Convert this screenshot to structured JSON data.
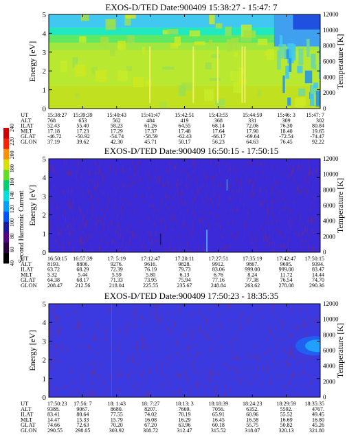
{
  "chart_data": [
    {
      "type": "heatmap",
      "title": "EXOS-D/TED  Date:900409  15:38:27 - 15:47: 7",
      "ylabel": "Energy [eV]",
      "y2label": "Temperature [K]",
      "ylim": [
        0,
        5
      ],
      "y2lim": [
        0,
        12000
      ],
      "y_ticks": [
        "0",
        "1",
        "2",
        "3",
        "4",
        "5"
      ],
      "y2_ticks": [
        "0",
        "2000",
        "4000",
        "6000",
        "8000",
        "10000",
        "12000"
      ],
      "grid": false,
      "x_times": [
        "15:38:27",
        "15:39:39",
        "15:40:43",
        "15:41:47",
        "15:42:51",
        "15:43:55",
        "15:44:59",
        "15:46: 3",
        "15:47: 7"
      ],
      "rows": [
        {
          "label": "UT",
          "values": [
            "15:38:27",
            "15:39:39",
            "15:40:43",
            "15:41:47",
            "15:42:51",
            "15:43:55",
            "15:44:59",
            "15:46: 3",
            "15:47: 7"
          ]
        },
        {
          "label": "ALT",
          "values": [
            "768",
            "653",
            "562",
            "484",
            "419",
            "368",
            "331",
            "309",
            "302"
          ]
        },
        {
          "label": "ILAT",
          "values": [
            "52.43",
            "55.40",
            "58.23",
            "61.26",
            "64.55",
            "68.14",
            "72.06",
            "76.30",
            "80.84"
          ]
        },
        {
          "label": "MLT",
          "values": [
            "17.18",
            "17.23",
            "17.29",
            "17.37",
            "17.48",
            "17.64",
            "17.90",
            "18.40",
            "19.65"
          ]
        },
        {
          "label": "GLAT",
          "values": [
            "-46.72",
            "-50.92",
            "-54.74",
            "-58.59",
            "-62.43",
            "-66.17",
            "-69.64",
            "-72.54",
            "-74.47"
          ]
        },
        {
          "label": "GLON",
          "values": [
            "37.19",
            "39.62",
            "42.30",
            "45.71",
            "50.17",
            "56.23",
            "64.63",
            "76.45",
            "92.22"
          ]
        }
      ],
      "description_levels": "band 0-3.4 eV yellow-green, 3.4-4.4 eV cyan/green, 4.4-5 eV light blue; blue patches near end"
    },
    {
      "type": "heatmap",
      "title": "EXOS-D/TED  Date:900409  16:50:15 - 17:50:15",
      "ylabel": "Energy [eV]",
      "y2label": "Temperature [K]",
      "ylim": [
        0,
        5
      ],
      "y2lim": [
        0,
        12000
      ],
      "y_ticks": [
        "0",
        "1",
        "2",
        "3",
        "4",
        "5"
      ],
      "y2_ticks": [
        "0",
        "2000",
        "4000",
        "6000",
        "8000",
        "10000",
        "12000"
      ],
      "grid": false,
      "x_times": [
        "16:50:15",
        "16:57:39",
        "17: 5:19",
        "17:12:47",
        "17:20:11",
        "17:27:51",
        "17:35:19",
        "17:42:47",
        "17:50:15"
      ],
      "rows": [
        {
          "label": "UT",
          "values": [
            "16:50:15",
            "16:57:39",
            "17: 5:19",
            "17:12:47",
            "17:20:11",
            "17:27:51",
            "17:35:19",
            "17:42:47",
            "17:50:15"
          ]
        },
        {
          "label": "ALT",
          "values": [
            "8193.",
            "8806.",
            "9276.",
            "9616.",
            "9828.",
            "9912.",
            "9867.",
            "9695.",
            "9394."
          ]
        },
        {
          "label": "ILAT",
          "values": [
            "63.72",
            "68.29",
            "72.39",
            "76.19",
            "79.73",
            "83.06",
            "999.00",
            "999.00",
            "83.47"
          ]
        },
        {
          "label": "MLT",
          "values": [
            "5.32",
            "5.44",
            "5.59",
            "5.80",
            "6.13",
            "6.76",
            "8.24",
            "11.72",
            "14.44"
          ]
        },
        {
          "label": "GLAT",
          "values": [
            "64.38",
            "68.17",
            "71.33",
            "73.95",
            "75.94",
            "77.16",
            "77.38",
            "76.54",
            "74.70"
          ]
        },
        {
          "label": "GLON",
          "values": [
            "208.47",
            "212.56",
            "218.04",
            "225.55",
            "235.67",
            "248.84",
            "263.62",
            "278.08",
            "290.36"
          ]
        }
      ]
    },
    {
      "type": "heatmap",
      "title": "EXOS-D/TED  Date:900409  17:50:23 - 18:35:35",
      "ylabel": "Energy [eV]",
      "y2label": "Temperature [K]",
      "ylim": [
        0,
        5
      ],
      "y2lim": [
        0,
        12000
      ],
      "y_ticks": [
        "0",
        "1",
        "2",
        "3",
        "4",
        "5"
      ],
      "y2_ticks": [
        "0",
        "2000",
        "4000",
        "6000",
        "8000",
        "10000",
        "12000"
      ],
      "grid": false,
      "x_times": [
        "17:50:23",
        "17:56: 7",
        "18: 1:43",
        "18: 7:27",
        "18:13: 3",
        "18:18:39",
        "18:24:23",
        "18:29:59",
        "18:35:35"
      ],
      "rows": [
        {
          "label": "UT",
          "values": [
            "17:50:23",
            "17:56: 7",
            "18: 1:43",
            "18: 7:27",
            "18:13: 3",
            "18:18:39",
            "18:24:23",
            "18:29:59",
            "18:35:35"
          ]
        },
        {
          "label": "ALT",
          "values": [
            "9388.",
            "9067.",
            "8680.",
            "8207.",
            "7669.",
            "7056.",
            "6352.",
            "5592.",
            "4767."
          ]
        },
        {
          "label": "ILAT",
          "values": [
            "83.41",
            "80.64",
            "77.55",
            "74.02",
            "70.19",
            "65.91",
            "60.96",
            "55.52",
            "49.45"
          ]
        },
        {
          "label": "MLT",
          "values": [
            "14.47",
            "15.33",
            "15.79",
            "16.08",
            "16.29",
            "16.45",
            "16.58",
            "16.69",
            "16.80"
          ]
        },
        {
          "label": "GLAT",
          "values": [
            "74.66",
            "72.63",
            "70.20",
            "67.20",
            "63.96",
            "60.18",
            "55.75",
            "50.82",
            "45.26"
          ]
        },
        {
          "label": "GLON",
          "values": [
            "290.55",
            "298.05",
            "303.92",
            "308.72",
            "312.47",
            "315.52",
            "318.07",
            "320.13",
            "321.80"
          ]
        }
      ]
    }
  ],
  "colorbar": {
    "label": "Second Harmonic Current",
    "ticks": [
      "40",
      "60",
      "80",
      "100",
      "120",
      "140",
      "160",
      "180",
      "200",
      "220",
      "240"
    ],
    "colors": [
      "#000000",
      "#2a0040",
      "#55007f",
      "#1a1aa0",
      "#0050ff",
      "#00a0ff",
      "#00e0e0",
      "#00d070",
      "#60e020",
      "#d8e000",
      "#ff9000",
      "#ff2000",
      "#d00000"
    ]
  },
  "palette": {
    "panel2_bg": "#3a2ad8",
    "panel3_bg": "#3a3ae0",
    "noise": "#8a2a60"
  }
}
